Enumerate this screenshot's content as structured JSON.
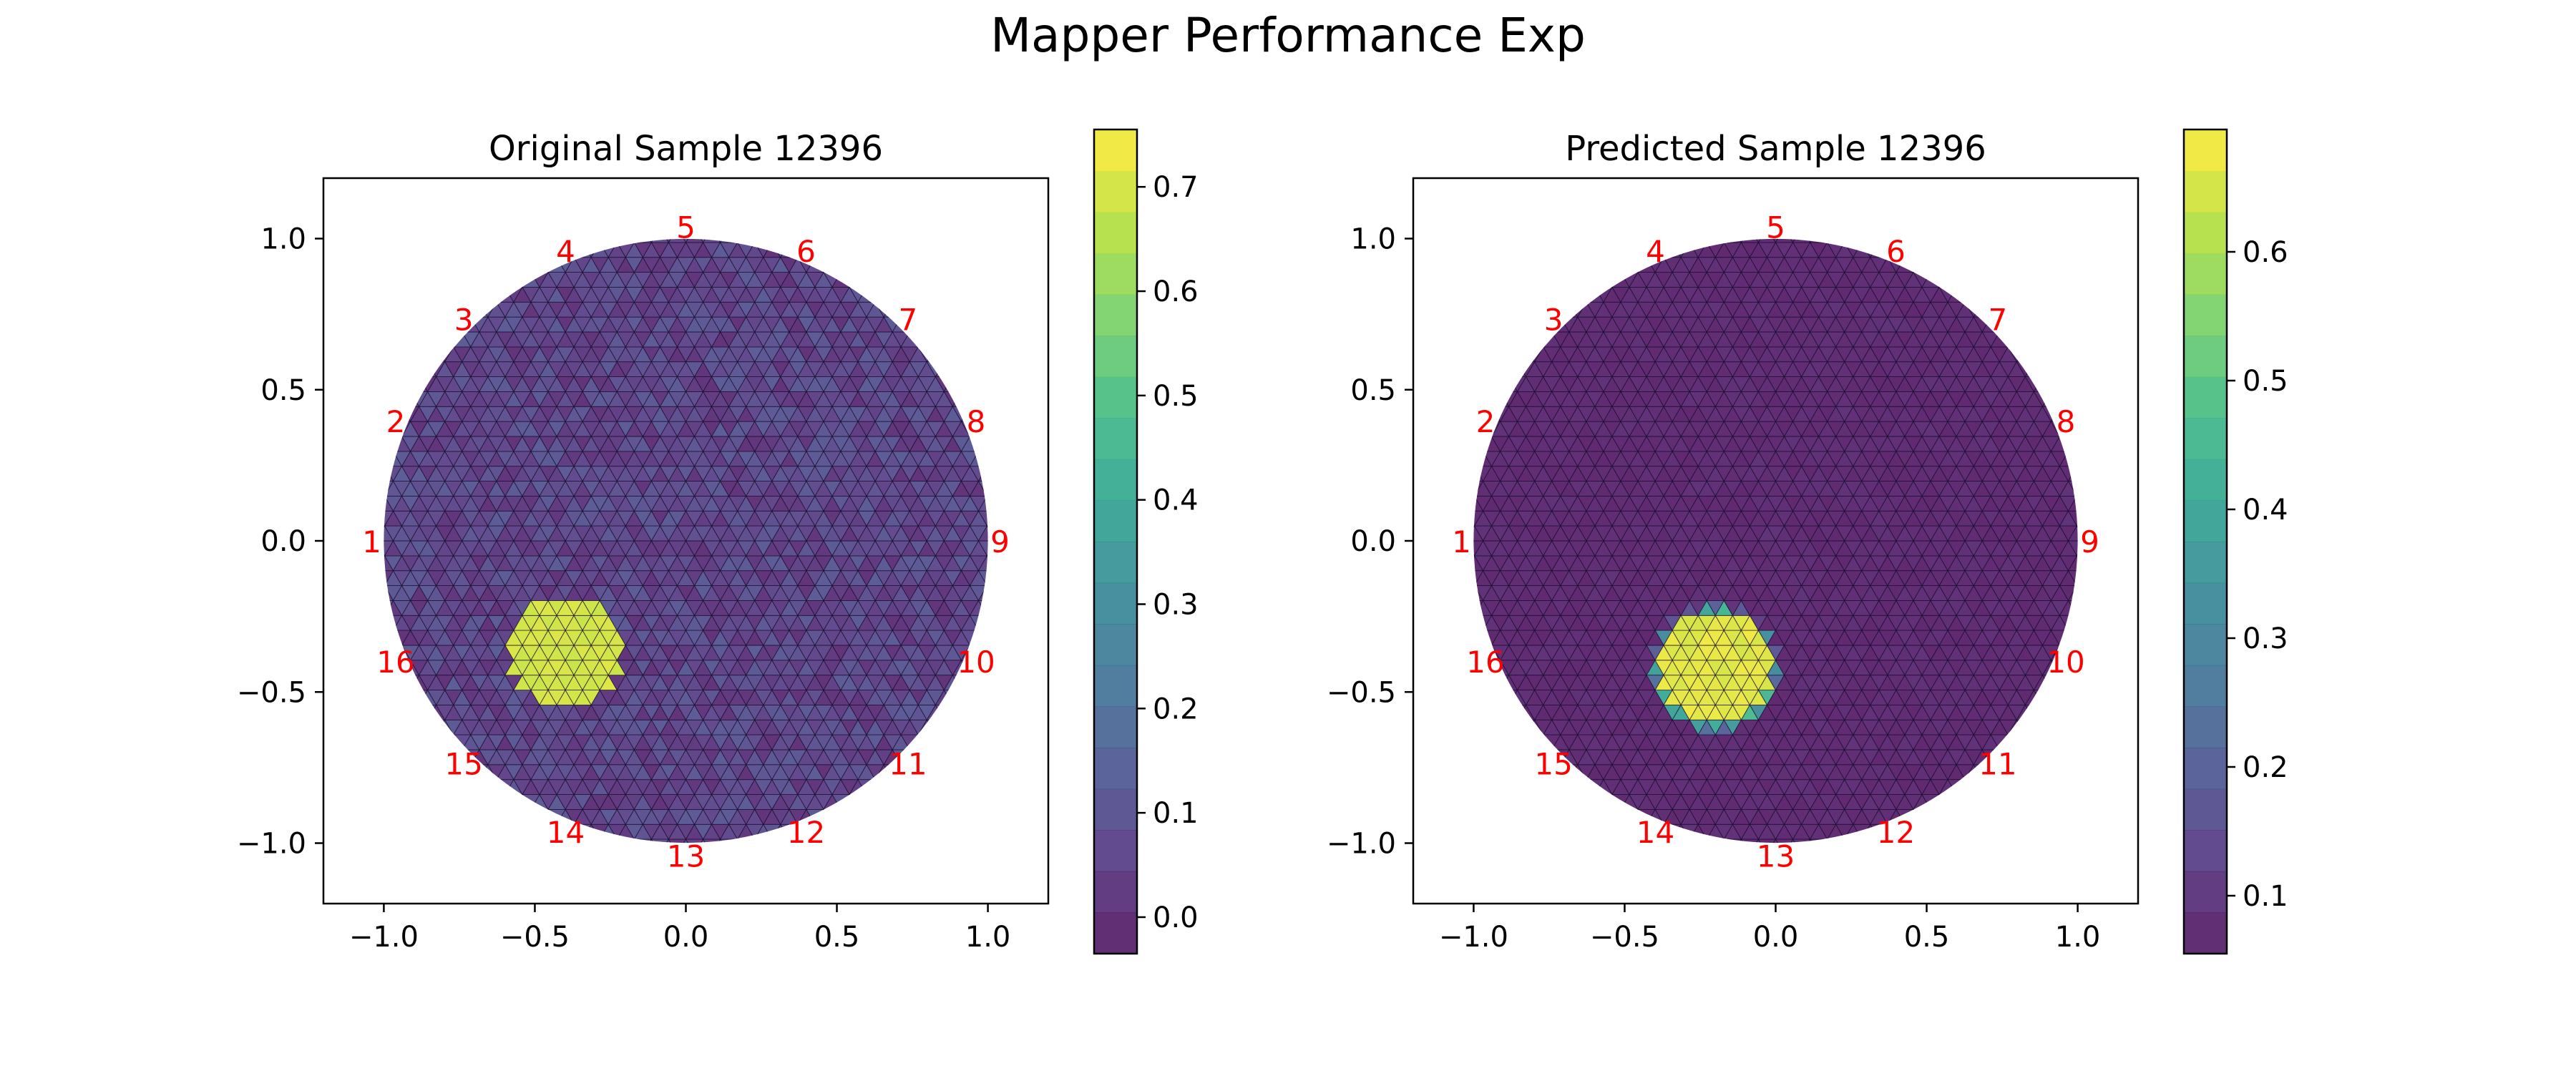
{
  "figure": {
    "title": "Mapper Performance Exp"
  },
  "colors": {
    "electrode_label": "#ff0000",
    "mesh_edge": "#1a1030",
    "axis": "#000000",
    "viridis": [
      "#440154",
      "#482878",
      "#3e4989",
      "#31688e",
      "#26828e",
      "#1f9e89",
      "#35b779",
      "#6ece58",
      "#b5de2b",
      "#fde725"
    ]
  },
  "chart_data": [
    {
      "type": "heatmap",
      "title": "Original Sample 12396",
      "xlim": [
        -1.2,
        1.2
      ],
      "ylim": [
        -1.2,
        1.2
      ],
      "xticks": [
        -1.0,
        -0.5,
        0.0,
        0.5,
        1.0
      ],
      "yticks": [
        -1.0,
        -0.5,
        0.0,
        0.5,
        1.0
      ],
      "xtick_labels": [
        "−1.0",
        "−0.5",
        "0.0",
        "0.5",
        "1.0"
      ],
      "ytick_labels": [
        "−1.0",
        "−0.5",
        "0.0",
        "0.5",
        "1.0"
      ],
      "domain": {
        "shape": "circle",
        "center": [
          0.0,
          0.0
        ],
        "radius": 1.0
      },
      "background_value": 0.05,
      "background_range": [
        0.0,
        0.12
      ],
      "inclusion": {
        "center": [
          -0.4,
          -0.37
        ],
        "radius": 0.2,
        "value": 0.71
      },
      "electrodes": [
        "1",
        "2",
        "3",
        "4",
        "5",
        "6",
        "7",
        "8",
        "9",
        "10",
        "11",
        "12",
        "13",
        "14",
        "15",
        "16"
      ],
      "colorbar": {
        "min": -0.035,
        "max": 0.755,
        "ticks": [
          0.0,
          0.1,
          0.2,
          0.3,
          0.4,
          0.5,
          0.6,
          0.7
        ],
        "tick_labels": [
          "0.0",
          "0.1",
          "0.2",
          "0.3",
          "0.4",
          "0.5",
          "0.6",
          "0.7"
        ],
        "levels": 20,
        "colormap": "viridis"
      }
    },
    {
      "type": "heatmap",
      "title": "Predicted Sample 12396",
      "xlim": [
        -1.2,
        1.2
      ],
      "ylim": [
        -1.2,
        1.2
      ],
      "xticks": [
        -1.0,
        -0.5,
        0.0,
        0.5,
        1.0
      ],
      "yticks": [
        -1.0,
        -0.5,
        0.0,
        0.5,
        1.0
      ],
      "xtick_labels": [
        "−1.0",
        "−0.5",
        "0.0",
        "0.5",
        "1.0"
      ],
      "ytick_labels": [
        "−1.0",
        "−0.5",
        "0.0",
        "0.5",
        "1.0"
      ],
      "domain": {
        "shape": "circle",
        "center": [
          0.0,
          0.0
        ],
        "radius": 1.0
      },
      "background_value": 0.07,
      "background_range": [
        0.06,
        0.08
      ],
      "inclusion": {
        "center": [
          -0.2,
          -0.42
        ],
        "radius": 0.2,
        "value": 0.68
      },
      "electrodes": [
        "1",
        "2",
        "3",
        "4",
        "5",
        "6",
        "7",
        "8",
        "9",
        "10",
        "11",
        "12",
        "13",
        "14",
        "15",
        "16"
      ],
      "colorbar": {
        "min": 0.055,
        "max": 0.695,
        "ticks": [
          0.1,
          0.2,
          0.3,
          0.4,
          0.5,
          0.6
        ],
        "tick_labels": [
          "0.1",
          "0.2",
          "0.3",
          "0.4",
          "0.5",
          "0.6"
        ],
        "levels": 20,
        "colormap": "viridis"
      }
    }
  ]
}
